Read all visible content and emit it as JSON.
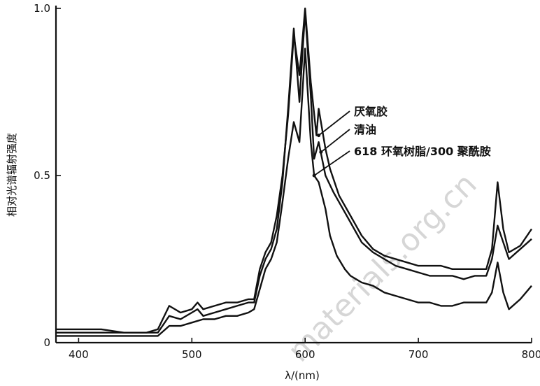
{
  "chart_data": {
    "type": "line",
    "title": "",
    "xlabel": "λ/(nm)",
    "ylabel": "相对光谱辐射强度",
    "xlim": [
      380,
      800
    ],
    "ylim": [
      0,
      1.0
    ],
    "x_ticks": [
      {
        "value": 400,
        "label": "400"
      },
      {
        "value": 500,
        "label": "500"
      },
      {
        "value": 600,
        "label": "600"
      },
      {
        "value": 700,
        "label": "700"
      },
      {
        "value": 800,
        "label": "800"
      }
    ],
    "y_ticks": [
      {
        "value": 0,
        "label": "0"
      },
      {
        "value": 0.5,
        "label": "0.5"
      },
      {
        "value": 1.0,
        "label": "1.0"
      }
    ],
    "grid": false,
    "series": [
      {
        "name": "厌氧胶",
        "points": [
          [
            380,
            0.04
          ],
          [
            400,
            0.04
          ],
          [
            420,
            0.04
          ],
          [
            440,
            0.03
          ],
          [
            460,
            0.03
          ],
          [
            470,
            0.04
          ],
          [
            480,
            0.11
          ],
          [
            490,
            0.09
          ],
          [
            500,
            0.1
          ],
          [
            505,
            0.12
          ],
          [
            510,
            0.1
          ],
          [
            520,
            0.11
          ],
          [
            530,
            0.12
          ],
          [
            540,
            0.12
          ],
          [
            550,
            0.13
          ],
          [
            555,
            0.13
          ],
          [
            560,
            0.22
          ],
          [
            565,
            0.27
          ],
          [
            570,
            0.3
          ],
          [
            575,
            0.38
          ],
          [
            580,
            0.5
          ],
          [
            585,
            0.68
          ],
          [
            590,
            0.92
          ],
          [
            595,
            0.8
          ],
          [
            600,
            1.0
          ],
          [
            605,
            0.78
          ],
          [
            610,
            0.62
          ],
          [
            612,
            0.7
          ],
          [
            618,
            0.58
          ],
          [
            622,
            0.52
          ],
          [
            630,
            0.44
          ],
          [
            640,
            0.38
          ],
          [
            650,
            0.32
          ],
          [
            660,
            0.28
          ],
          [
            670,
            0.26
          ],
          [
            680,
            0.25
          ],
          [
            690,
            0.24
          ],
          [
            700,
            0.23
          ],
          [
            710,
            0.23
          ],
          [
            720,
            0.23
          ],
          [
            730,
            0.22
          ],
          [
            740,
            0.22
          ],
          [
            750,
            0.22
          ],
          [
            760,
            0.22
          ],
          [
            765,
            0.28
          ],
          [
            770,
            0.48
          ],
          [
            775,
            0.34
          ],
          [
            780,
            0.27
          ],
          [
            790,
            0.29
          ],
          [
            800,
            0.34
          ]
        ]
      },
      {
        "name": "清油",
        "points": [
          [
            380,
            0.03
          ],
          [
            400,
            0.03
          ],
          [
            420,
            0.03
          ],
          [
            440,
            0.03
          ],
          [
            460,
            0.03
          ],
          [
            470,
            0.03
          ],
          [
            480,
            0.08
          ],
          [
            490,
            0.07
          ],
          [
            500,
            0.09
          ],
          [
            505,
            0.1
          ],
          [
            510,
            0.08
          ],
          [
            520,
            0.09
          ],
          [
            530,
            0.1
          ],
          [
            540,
            0.11
          ],
          [
            550,
            0.12
          ],
          [
            555,
            0.12
          ],
          [
            560,
            0.2
          ],
          [
            565,
            0.25
          ],
          [
            570,
            0.28
          ],
          [
            575,
            0.34
          ],
          [
            580,
            0.48
          ],
          [
            585,
            0.7
          ],
          [
            590,
            0.94
          ],
          [
            595,
            0.72
          ],
          [
            600,
            0.99
          ],
          [
            605,
            0.74
          ],
          [
            608,
            0.55
          ],
          [
            612,
            0.6
          ],
          [
            618,
            0.5
          ],
          [
            625,
            0.45
          ],
          [
            630,
            0.42
          ],
          [
            640,
            0.36
          ],
          [
            650,
            0.3
          ],
          [
            660,
            0.27
          ],
          [
            670,
            0.25
          ],
          [
            680,
            0.23
          ],
          [
            690,
            0.22
          ],
          [
            700,
            0.21
          ],
          [
            710,
            0.2
          ],
          [
            720,
            0.2
          ],
          [
            730,
            0.2
          ],
          [
            740,
            0.19
          ],
          [
            750,
            0.2
          ],
          [
            760,
            0.2
          ],
          [
            765,
            0.25
          ],
          [
            770,
            0.35
          ],
          [
            775,
            0.3
          ],
          [
            780,
            0.25
          ],
          [
            790,
            0.28
          ],
          [
            800,
            0.31
          ]
        ]
      },
      {
        "name": "618 环氧树脂/300 聚酰胺",
        "points": [
          [
            380,
            0.02
          ],
          [
            400,
            0.02
          ],
          [
            420,
            0.02
          ],
          [
            440,
            0.02
          ],
          [
            460,
            0.02
          ],
          [
            470,
            0.02
          ],
          [
            480,
            0.05
          ],
          [
            490,
            0.05
          ],
          [
            500,
            0.06
          ],
          [
            510,
            0.07
          ],
          [
            520,
            0.07
          ],
          [
            530,
            0.08
          ],
          [
            540,
            0.08
          ],
          [
            550,
            0.09
          ],
          [
            555,
            0.1
          ],
          [
            560,
            0.16
          ],
          [
            565,
            0.22
          ],
          [
            570,
            0.25
          ],
          [
            575,
            0.3
          ],
          [
            580,
            0.42
          ],
          [
            585,
            0.55
          ],
          [
            590,
            0.66
          ],
          [
            595,
            0.6
          ],
          [
            600,
            0.88
          ],
          [
            605,
            0.6
          ],
          [
            608,
            0.5
          ],
          [
            612,
            0.48
          ],
          [
            618,
            0.4
          ],
          [
            622,
            0.32
          ],
          [
            628,
            0.26
          ],
          [
            635,
            0.22
          ],
          [
            640,
            0.2
          ],
          [
            650,
            0.18
          ],
          [
            660,
            0.17
          ],
          [
            670,
            0.15
          ],
          [
            680,
            0.14
          ],
          [
            690,
            0.13
          ],
          [
            700,
            0.12
          ],
          [
            710,
            0.12
          ],
          [
            720,
            0.11
          ],
          [
            730,
            0.11
          ],
          [
            740,
            0.12
          ],
          [
            750,
            0.12
          ],
          [
            760,
            0.12
          ],
          [
            765,
            0.15
          ],
          [
            770,
            0.24
          ],
          [
            775,
            0.15
          ],
          [
            780,
            0.1
          ],
          [
            790,
            0.13
          ],
          [
            800,
            0.17
          ]
        ]
      }
    ],
    "legend": [
      {
        "label": "厌氧胶",
        "arrow_to": [
          612,
          0.62
        ]
      },
      {
        "label": "清油",
        "arrow_to": [
          614,
          0.57
        ]
      },
      {
        "label": "618 环氧树脂/300 聚酰胺",
        "arrow_to": [
          608,
          0.5
        ]
      }
    ],
    "watermark": "materials.org.cn"
  }
}
